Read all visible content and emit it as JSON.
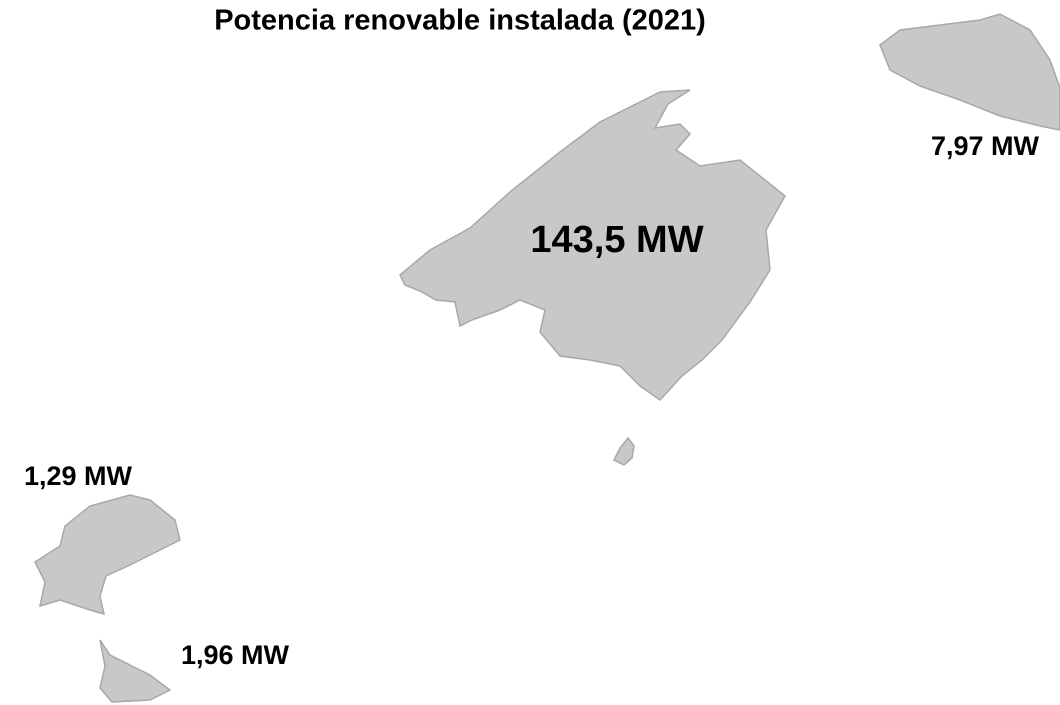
{
  "title": "Potencia renovable instalada (2021)",
  "labels": [
    "143,5 MW",
    "7,97 MW",
    "1,29 MW",
    "1,96 MW"
  ]
}
